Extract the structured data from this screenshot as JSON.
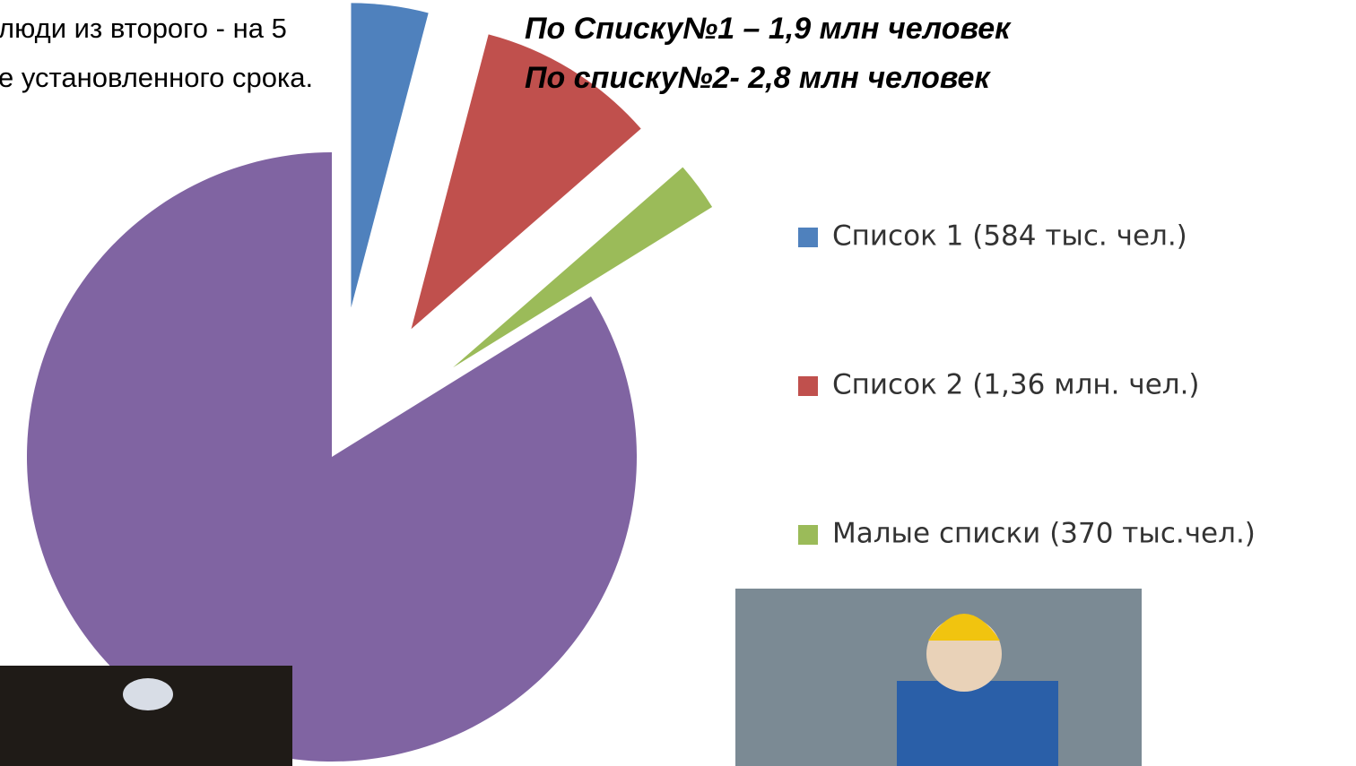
{
  "slide": {
    "text_left": [
      "люди из второго - на 5",
      "е установленного срока."
    ],
    "text_right": [
      "По Списку№1 – 1,9 млн человек",
      "По списку№2- 2,8 млн человек"
    ]
  },
  "chart_data": {
    "type": "pie",
    "categories": [
      "Список  1 (584 тыс. чел.)",
      "Список 2 (1,36 млн. чел.)",
      "Малые списки (370 тыс.чел.)",
      null
    ],
    "values": [
      584,
      1360,
      370,
      12000
    ],
    "colors": [
      "#4f81bd",
      "#c0504d",
      "#9bbb59",
      "#8064a2"
    ],
    "explode": [
      true,
      true,
      true,
      false
    ],
    "legend": "right"
  }
}
